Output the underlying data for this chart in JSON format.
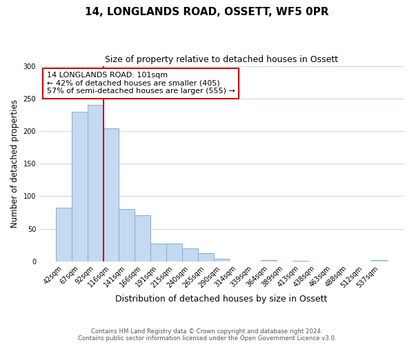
{
  "title_line1": "14, LONGLANDS ROAD, OSSETT, WF5 0PR",
  "title_line2": "Size of property relative to detached houses in Ossett",
  "bar_labels": [
    "42sqm",
    "67sqm",
    "92sqm",
    "116sqm",
    "141sqm",
    "166sqm",
    "191sqm",
    "215sqm",
    "240sqm",
    "265sqm",
    "290sqm",
    "314sqm",
    "339sqm",
    "364sqm",
    "389sqm",
    "413sqm",
    "438sqm",
    "463sqm",
    "488sqm",
    "512sqm",
    "537sqm"
  ],
  "bar_values": [
    83,
    230,
    240,
    204,
    80,
    71,
    27,
    27,
    20,
    13,
    4,
    0,
    0,
    2,
    0,
    1,
    0,
    0,
    0,
    0,
    2
  ],
  "bar_color": "#c5d9f0",
  "bar_edge_color": "#7bafd4",
  "ylim": [
    0,
    300
  ],
  "yticks": [
    0,
    50,
    100,
    150,
    200,
    250,
    300
  ],
  "ylabel": "Number of detached properties",
  "xlabel": "Distribution of detached houses by size in Ossett",
  "property_line_label": "14 LONGLANDS ROAD: 101sqm",
  "annotation_line1": "← 42% of detached houses are smaller (405)",
  "annotation_line2": "57% of semi-detached houses are larger (555) →",
  "annotation_box_color": "#ffffff",
  "annotation_box_edge_color": "#cc0000",
  "red_line_color": "#cc0000",
  "red_line_x": 2.5,
  "footer_line1": "Contains HM Land Registry data © Crown copyright and database right 2024.",
  "footer_line2": "Contains public sector information licensed under the Open Government Licence v3.0.",
  "background_color": "#ffffff",
  "grid_color": "#c8d8ec"
}
